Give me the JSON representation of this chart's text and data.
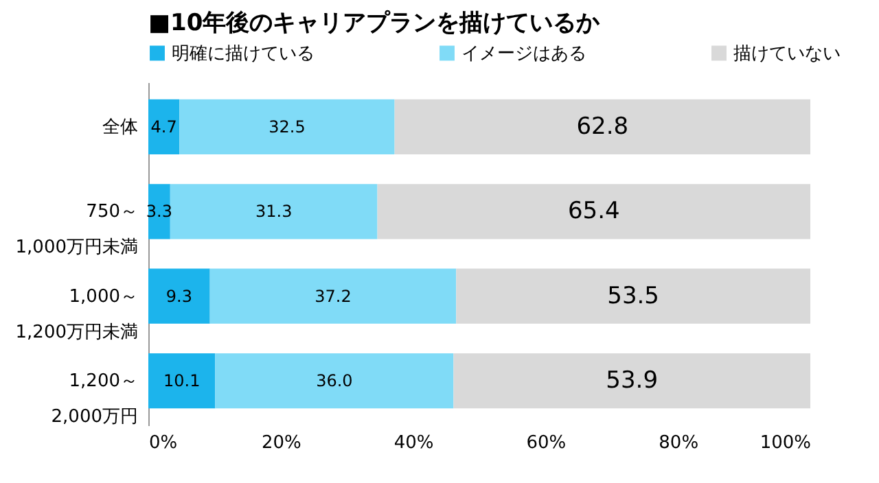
{
  "chart_data": {
    "type": "bar",
    "orientation": "horizontal",
    "stacked": true,
    "title": "■10年後のキャリアプランを描けているか",
    "categories": [
      "全体",
      "750～\n1,000万円未満",
      "1,000～\n1,200万円未満",
      "1,200～\n2,000万円"
    ],
    "series": [
      {
        "name": "明確に描けている",
        "color": "#1cb4ec",
        "values": [
          4.7,
          3.3,
          9.3,
          10.1
        ],
        "value_labels": [
          "4.7",
          "3.3",
          "9.3",
          "10.1"
        ]
      },
      {
        "name": "イメージはある",
        "color": "#80dbf7",
        "values": [
          32.5,
          31.3,
          37.2,
          36.0
        ],
        "value_labels": [
          "32.5",
          "31.3",
          "37.2",
          "36.0"
        ]
      },
      {
        "name": "描けていない",
        "color": "#d9d9d9",
        "values": [
          62.8,
          65.4,
          53.5,
          53.9
        ],
        "value_labels": [
          "62.8",
          "65.4",
          "53.5",
          "53.9"
        ]
      }
    ],
    "xlim": [
      0,
      100
    ],
    "xticks": [
      {
        "value": 0,
        "label": "0%"
      },
      {
        "value": 20,
        "label": "20%"
      },
      {
        "value": 40,
        "label": "40%"
      },
      {
        "value": 60,
        "label": "60%"
      },
      {
        "value": 80,
        "label": "80%"
      },
      {
        "value": 100,
        "label": "100%"
      }
    ],
    "legend": "top"
  }
}
